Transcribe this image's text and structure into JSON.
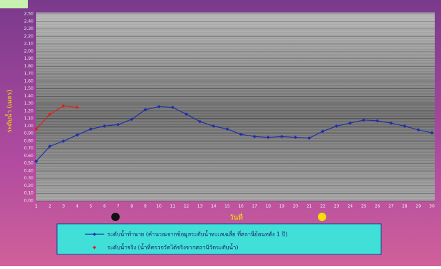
{
  "chart_data": {
    "type": "line",
    "y_label": "ระดับน้ำ (เมตร)",
    "x_label": "วันที่",
    "x": [
      1,
      2,
      3,
      4,
      5,
      6,
      7,
      8,
      9,
      10,
      11,
      12,
      13,
      14,
      15,
      16,
      17,
      18,
      19,
      20,
      21,
      22,
      23,
      24,
      25,
      26,
      27,
      28,
      29,
      30
    ],
    "xlim": [
      1,
      30
    ],
    "ylim": [
      0,
      2.5
    ],
    "yticks": [
      {
        "value": 0,
        "label": "0.00"
      },
      {
        "value": 0.1,
        "label": "0.10"
      },
      {
        "value": 0.2,
        "label": "0.20"
      },
      {
        "value": 0.3,
        "label": "0.30"
      },
      {
        "value": 0.4,
        "label": "0.40"
      },
      {
        "value": 0.5,
        "label": "0.50"
      },
      {
        "value": 0.6,
        "label": "0.60"
      },
      {
        "value": 0.7,
        "label": "0.70"
      },
      {
        "value": 0.8,
        "label": "0.80"
      },
      {
        "value": 0.9,
        "label": "0.90"
      },
      {
        "value": 1,
        "label": "1.00"
      },
      {
        "value": 1.1,
        "label": "1.10"
      },
      {
        "value": 1.2,
        "label": "1.20"
      },
      {
        "value": 1.3,
        "label": "1.30"
      },
      {
        "value": 1.4,
        "label": "1.40"
      },
      {
        "value": 1.5,
        "label": "1.50"
      },
      {
        "value": 1.6,
        "label": "1.60"
      },
      {
        "value": 1.7,
        "label": "1.70"
      },
      {
        "value": 1.8,
        "label": "1.80"
      },
      {
        "value": 1.9,
        "label": "1.90"
      },
      {
        "value": 2,
        "label": "2.00"
      },
      {
        "value": 2.1,
        "label": "2.10"
      },
      {
        "value": 2.2,
        "label": "2.20"
      },
      {
        "value": 2.3,
        "label": "2.30"
      },
      {
        "value": 2.4,
        "label": "2.40"
      },
      {
        "value": 2.5,
        "label": "2.50"
      }
    ],
    "grid": true,
    "series": [
      {
        "name": "ระดับน้ำทำนาย (คำนวณจากข้อมูลระดับน้ำทะเลเฉลี่ย ที่สถานีย้อนหลัง 1 ปี)",
        "color": "#1f2fa8",
        "values": [
          0.53,
          0.73,
          0.8,
          0.88,
          0.96,
          1.0,
          1.02,
          1.09,
          1.22,
          1.26,
          1.25,
          1.16,
          1.06,
          1.0,
          0.96,
          0.89,
          0.86,
          0.85,
          0.86,
          0.85,
          0.84,
          0.93,
          1.0,
          1.04,
          1.08,
          1.07,
          1.04,
          1.0,
          0.95,
          0.91
        ]
      },
      {
        "name": "ระดับน้ำจริง (น้ำที่ตรวจวัดได้จริงจากสถานีวัดระดับน้ำ)",
        "color": "#e02020",
        "values": [
          0.96,
          1.16,
          1.27,
          1.25,
          null,
          null,
          null,
          null,
          null,
          null,
          null,
          null,
          null,
          null,
          null,
          null,
          null,
          null,
          null,
          null,
          null,
          null,
          null,
          null,
          null,
          null,
          null,
          null,
          null,
          null
        ]
      }
    ]
  }
}
